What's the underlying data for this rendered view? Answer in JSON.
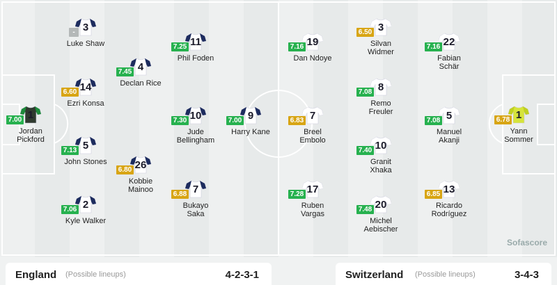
{
  "teams": [
    {
      "name": "England",
      "note": "(Possible lineups)",
      "formation": "4-2-3-1",
      "players": [
        {
          "number": "1",
          "name": "Jordan Pickford",
          "rating": "7.00"
        },
        {
          "number": "3",
          "name": "Luke Shaw",
          "rating": "-"
        },
        {
          "number": "14",
          "name": "Ezri Konsa",
          "rating": "6.60"
        },
        {
          "number": "5",
          "name": "John Stones",
          "rating": "7.13"
        },
        {
          "number": "2",
          "name": "Kyle Walker",
          "rating": "7.06"
        },
        {
          "number": "4",
          "name": "Declan Rice",
          "rating": "7.45"
        },
        {
          "number": "26",
          "name": "Kobbie Mainoo",
          "rating": "6.80"
        },
        {
          "number": "11",
          "name": "Phil Foden",
          "rating": "7.25"
        },
        {
          "number": "10",
          "name": "Jude Bellingham",
          "rating": "7.30"
        },
        {
          "number": "7",
          "name": "Bukayo Saka",
          "rating": "6.88"
        },
        {
          "number": "9",
          "name": "Harry Kane",
          "rating": "7.00"
        }
      ]
    },
    {
      "name": "Switzerland",
      "note": "(Possible lineups)",
      "formation": "3-4-3",
      "players": [
        {
          "number": "19",
          "name": "Dan Ndoye",
          "rating": "7.16"
        },
        {
          "number": "7",
          "name": "Breel Embolo",
          "rating": "6.83"
        },
        {
          "number": "17",
          "name": "Ruben Vargas",
          "rating": "7.28"
        },
        {
          "number": "3",
          "name": "Silvan Widmer",
          "rating": "6.50"
        },
        {
          "number": "8",
          "name": "Remo Freuler",
          "rating": "7.08"
        },
        {
          "number": "10",
          "name": "Granit Xhaka",
          "rating": "7.40"
        },
        {
          "number": "20",
          "name": "Michel Aebischer",
          "rating": "7.48"
        },
        {
          "number": "22",
          "name": "Fabian Schär",
          "rating": "7.16"
        },
        {
          "number": "5",
          "name": "Manuel Akanji",
          "rating": "7.08"
        },
        {
          "number": "13",
          "name": "Ricardo Rodríguez",
          "rating": "6.85"
        },
        {
          "number": "1",
          "name": "Yann Sommer",
          "rating": "6.78"
        }
      ]
    }
  ],
  "watermark": "Sofascore"
}
